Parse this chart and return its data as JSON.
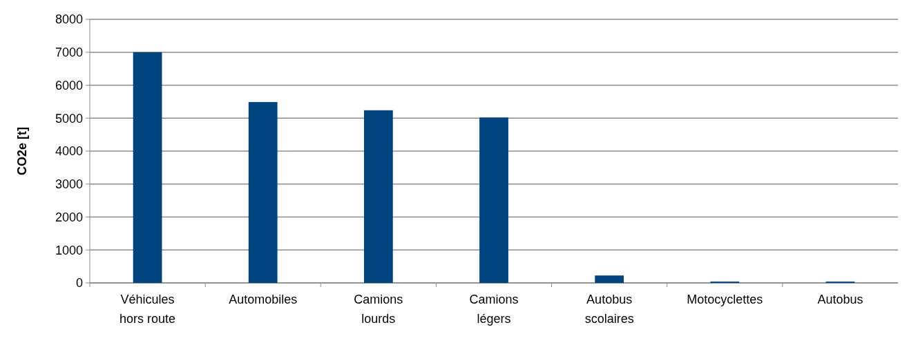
{
  "chart_data": {
    "type": "bar",
    "ylabel": "CO2e [t]",
    "categories": [
      "Véhicules\nhors route",
      "Automobiles",
      "Camions\nlourds",
      "Camions\nlégers",
      "Autobus\nscolaires",
      "Motocyclettes",
      "Autobus"
    ],
    "values": [
      7000,
      5490,
      5240,
      5020,
      225,
      40,
      40
    ],
    "color": "#004480",
    "ylim": [
      0,
      8000
    ],
    "yticks": [
      0,
      1000,
      2000,
      3000,
      4000,
      5000,
      6000,
      7000,
      8000
    ],
    "grid": "y"
  }
}
